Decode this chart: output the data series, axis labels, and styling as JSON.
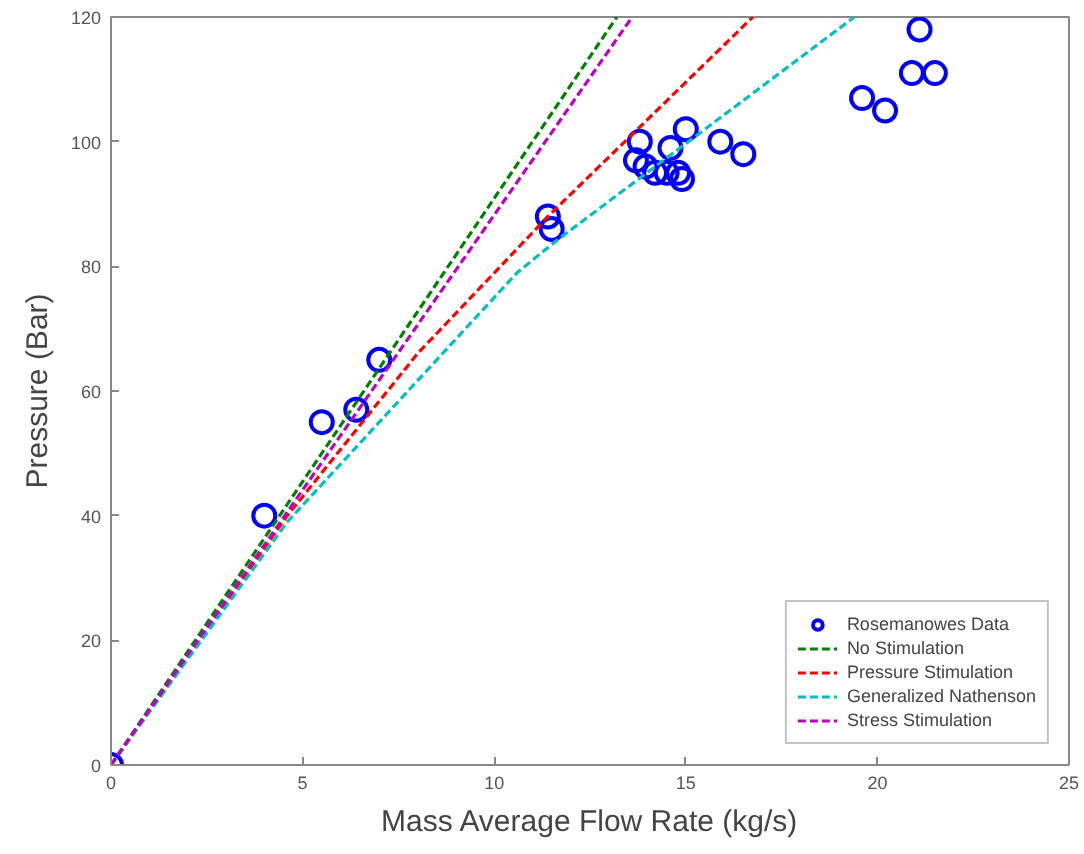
{
  "chart_data": {
    "type": "line",
    "xlabel": "Mass Average Flow Rate (kg/s)",
    "ylabel": "Pressure (Bar)",
    "xlim": [
      0,
      25
    ],
    "ylim": [
      0,
      120
    ],
    "xticks": [
      0,
      5,
      10,
      15,
      20,
      25
    ],
    "yticks": [
      0,
      20,
      40,
      60,
      80,
      100,
      120
    ],
    "grid": false,
    "legend": "bottom right",
    "line_style": "dashed",
    "series": [
      {
        "name": "Rosemanowes Data",
        "type": "scatter",
        "marker": "circle",
        "color": "#0000ff",
        "x": [
          0,
          4,
          5.5,
          6.4,
          7,
          11.4,
          11.5,
          13.8,
          13.7,
          13.95,
          14.2,
          14.5,
          14.8,
          14.6,
          15,
          14.9,
          15.9,
          16.5,
          19.6,
          20.2,
          20.9,
          21.5,
          21.1
        ],
        "values": [
          0,
          40,
          55,
          57,
          65,
          88,
          86,
          100,
          97,
          96,
          95,
          95,
          95,
          99,
          102,
          94,
          100,
          98,
          107,
          105,
          111,
          111,
          118
        ]
      },
      {
        "name": "No Stimulation",
        "color": "#008000",
        "x": [
          0,
          13.2
        ],
        "values": [
          0,
          120
        ]
      },
      {
        "name": "Pressure Stimulation",
        "color": "#ff0000",
        "x": [
          0,
          4.6,
          8,
          11.4,
          16.75
        ],
        "values": [
          0,
          40,
          66,
          88,
          120
        ]
      },
      {
        "name": "Generalized Nathenson",
        "color": "#00bfbf",
        "x": [
          0,
          4.6,
          10.6,
          11.6,
          19.4
        ],
        "values": [
          0,
          39,
          79,
          84,
          120
        ]
      },
      {
        "name": "Stress Stimulation",
        "color": "#bf00bf",
        "x": [
          0,
          13.6
        ],
        "values": [
          0,
          120
        ]
      }
    ]
  }
}
